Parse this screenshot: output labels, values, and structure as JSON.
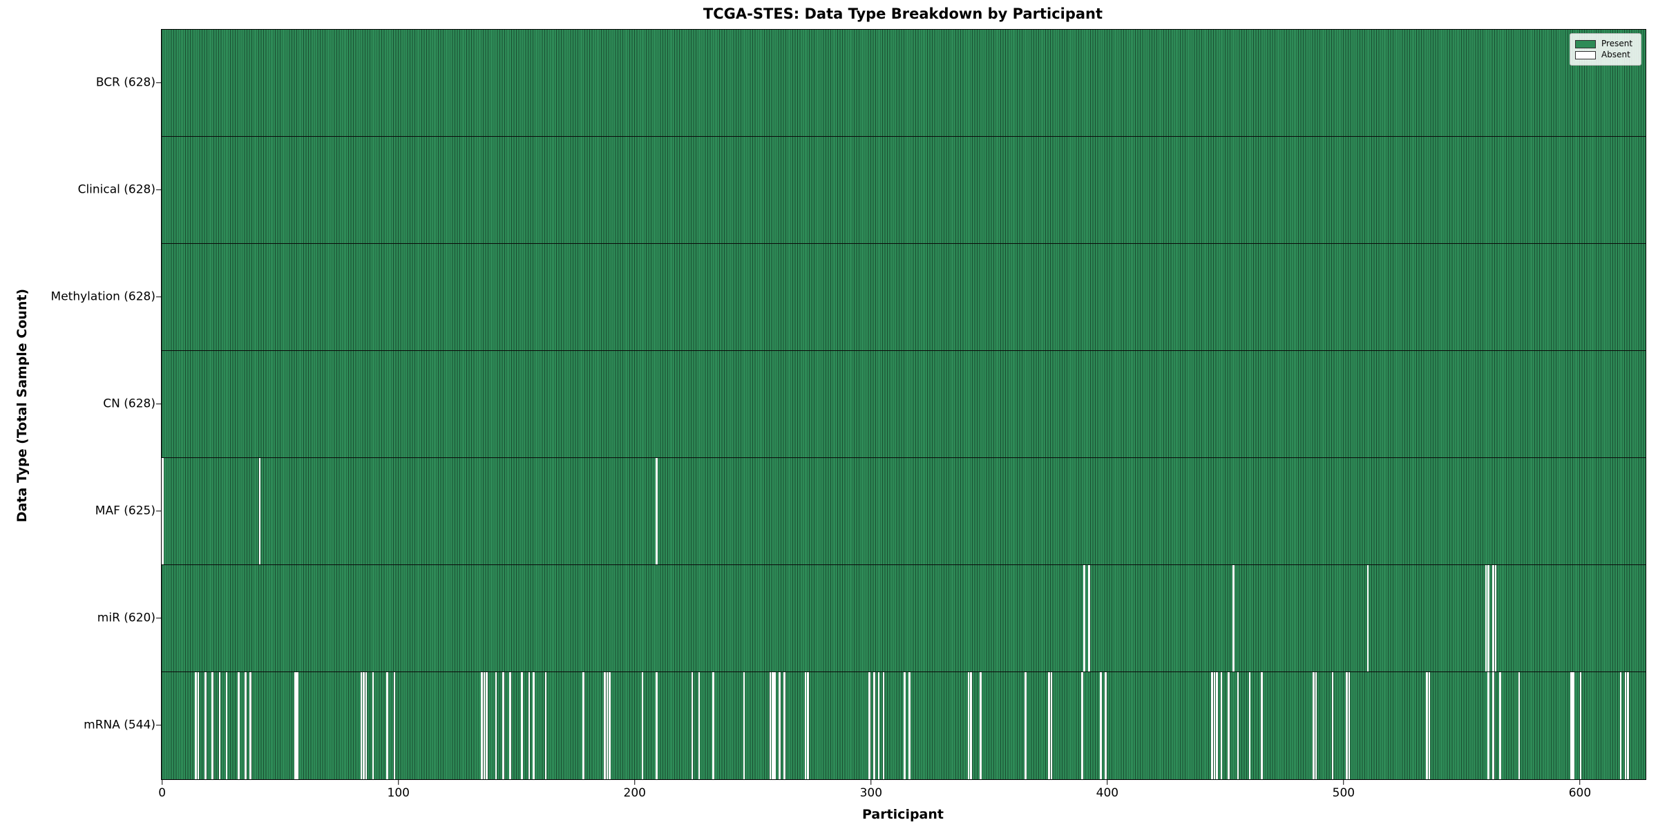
{
  "chart_data": {
    "type": "heatmap",
    "title": "TCGA-STES: Data Type Breakdown by Participant",
    "xlabel": "Participant",
    "ylabel": "Data Type (Total Sample Count)",
    "n_participants": 628,
    "x_ticks": [
      0,
      100,
      200,
      300,
      400,
      500,
      600
    ],
    "present_color": "#2e8b57",
    "absent_color": "#ffffff",
    "bar_edge_color": "rgba(0,0,0,0.45)",
    "legend": [
      {
        "label": "Present",
        "color": "#2e8b57"
      },
      {
        "label": "Absent",
        "color": "#ffffff"
      }
    ],
    "legend_position": "upper right",
    "rows": [
      {
        "label": "BCR (628)",
        "count": 628,
        "absent": []
      },
      {
        "label": "Clinical (628)",
        "count": 628,
        "absent": []
      },
      {
        "label": "Methylation (628)",
        "count": 628,
        "absent": []
      },
      {
        "label": "CN (628)",
        "count": 628,
        "absent": []
      },
      {
        "label": "MAF (625)",
        "count": 625,
        "absent": [
          0,
          41,
          209
        ]
      },
      {
        "label": "miR (620)",
        "count": 620,
        "absent": [
          390,
          392,
          453,
          510,
          560,
          561,
          563,
          564
        ]
      },
      {
        "label": "mRNA (544)",
        "count": 544,
        "absent": [
          14,
          15,
          18,
          21,
          24,
          27,
          32,
          35,
          37,
          56,
          57,
          84,
          85,
          86,
          89,
          95,
          98,
          135,
          136,
          137,
          141,
          144,
          147,
          152,
          155,
          157,
          162,
          178,
          187,
          188,
          189,
          203,
          209,
          224,
          227,
          233,
          246,
          257,
          258,
          259,
          261,
          263,
          272,
          273,
          299,
          301,
          303,
          305,
          314,
          316,
          341,
          342,
          346,
          365,
          375,
          376,
          389,
          397,
          399,
          444,
          445,
          446,
          448,
          451,
          455,
          460,
          465,
          487,
          488,
          495,
          501,
          502,
          535,
          536,
          561,
          563,
          566,
          574,
          596,
          597,
          600,
          617,
          619,
          620
        ]
      }
    ]
  }
}
